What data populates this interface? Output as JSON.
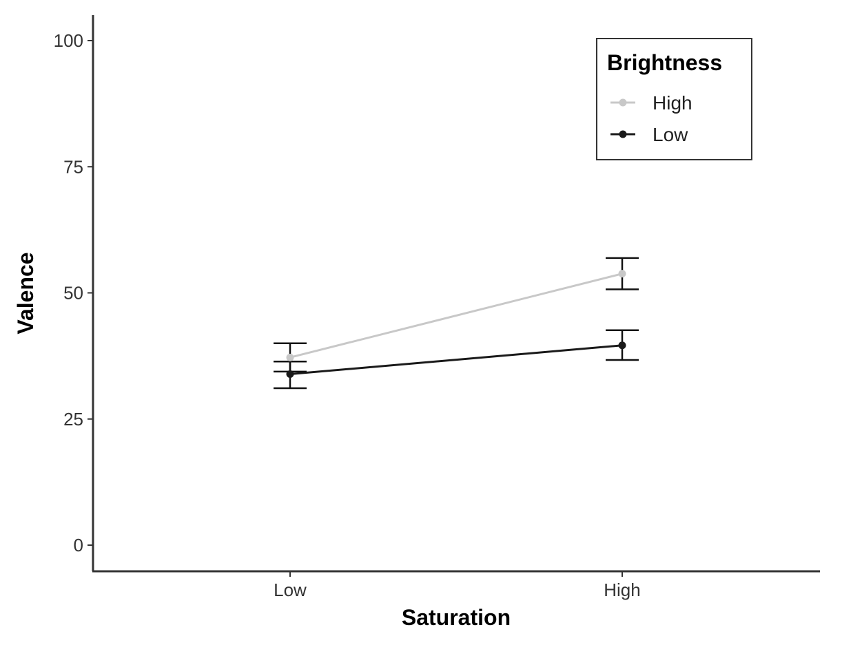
{
  "chart_data": {
    "type": "line",
    "xlabel": "Saturation",
    "ylabel": "Valence",
    "categories": [
      "Low",
      "High"
    ],
    "ylim": [
      -5,
      105
    ],
    "yticks": [
      0,
      25,
      50,
      75,
      100
    ],
    "grid": false,
    "legend": {
      "title": "Brightness",
      "position": "top-right",
      "entries": [
        "High",
        "Low"
      ]
    },
    "series": [
      {
        "name": "High",
        "color": "#c8c8c8",
        "values": [
          37.2,
          53.8
        ],
        "error_lower": [
          34.4,
          50.7
        ],
        "error_upper": [
          40.0,
          56.9
        ]
      },
      {
        "name": "Low",
        "color": "#1a1a1a",
        "values": [
          33.9,
          39.6
        ],
        "error_lower": [
          31.1,
          36.7
        ],
        "error_upper": [
          36.4,
          42.6
        ]
      }
    ]
  }
}
